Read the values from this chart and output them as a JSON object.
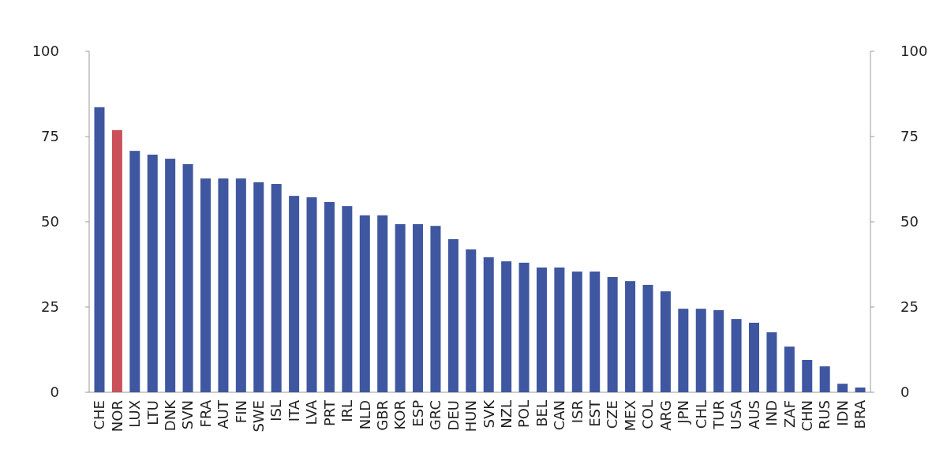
{
  "chart_data": {
    "type": "bar",
    "categories": [
      "CHE",
      "NOR",
      "LUX",
      "LTU",
      "DNK",
      "SVN",
      "FRA",
      "AUT",
      "FIN",
      "SWE",
      "ISL",
      "ITA",
      "LVA",
      "PRT",
      "IRL",
      "NLD",
      "GBR",
      "KOR",
      "ESP",
      "GRC",
      "DEU",
      "HUN",
      "SVK",
      "NZL",
      "POL",
      "BEL",
      "CAN",
      "ISR",
      "EST",
      "CZE",
      "MEX",
      "COL",
      "ARG",
      "JPN",
      "CHL",
      "TUR",
      "USA",
      "AUS",
      "IND",
      "ZAF",
      "CHN",
      "RUS",
      "IDN",
      "BRA"
    ],
    "values": [
      83.6,
      76.9,
      70.8,
      69.7,
      68.5,
      66.9,
      62.7,
      62.7,
      62.7,
      61.6,
      61.1,
      57.6,
      57.2,
      55.8,
      54.6,
      51.9,
      51.9,
      49.3,
      49.3,
      48.8,
      44.9,
      41.9,
      39.6,
      38.4,
      38.0,
      36.6,
      36.6,
      35.4,
      35.4,
      33.8,
      32.6,
      31.5,
      29.6,
      24.5,
      24.5,
      24.1,
      21.5,
      20.4,
      17.6,
      13.4,
      9.5,
      7.6,
      2.5,
      1.4
    ],
    "colors": [
      "#3f56a0",
      "#c9515a",
      "#3f56a0",
      "#3f56a0",
      "#3f56a0",
      "#3f56a0",
      "#3f56a0",
      "#3f56a0",
      "#3f56a0",
      "#3f56a0",
      "#3f56a0",
      "#3f56a0",
      "#3f56a0",
      "#3f56a0",
      "#3f56a0",
      "#3f56a0",
      "#3f56a0",
      "#3f56a0",
      "#3f56a0",
      "#3f56a0",
      "#3f56a0",
      "#3f56a0",
      "#3f56a0",
      "#3f56a0",
      "#3f56a0",
      "#3f56a0",
      "#3f56a0",
      "#3f56a0",
      "#3f56a0",
      "#3f56a0",
      "#3f56a0",
      "#3f56a0",
      "#3f56a0",
      "#3f56a0",
      "#3f56a0",
      "#3f56a0",
      "#3f56a0",
      "#3f56a0",
      "#3f56a0",
      "#3f56a0",
      "#3f56a0",
      "#3f56a0",
      "#3f56a0",
      "#3f56a0"
    ],
    "ylim": [
      0,
      100
    ],
    "yticks": [
      0,
      25,
      50,
      75,
      100
    ],
    "y2lim": [
      0,
      100
    ],
    "y2ticks": [
      0,
      25,
      50,
      75,
      100
    ]
  }
}
